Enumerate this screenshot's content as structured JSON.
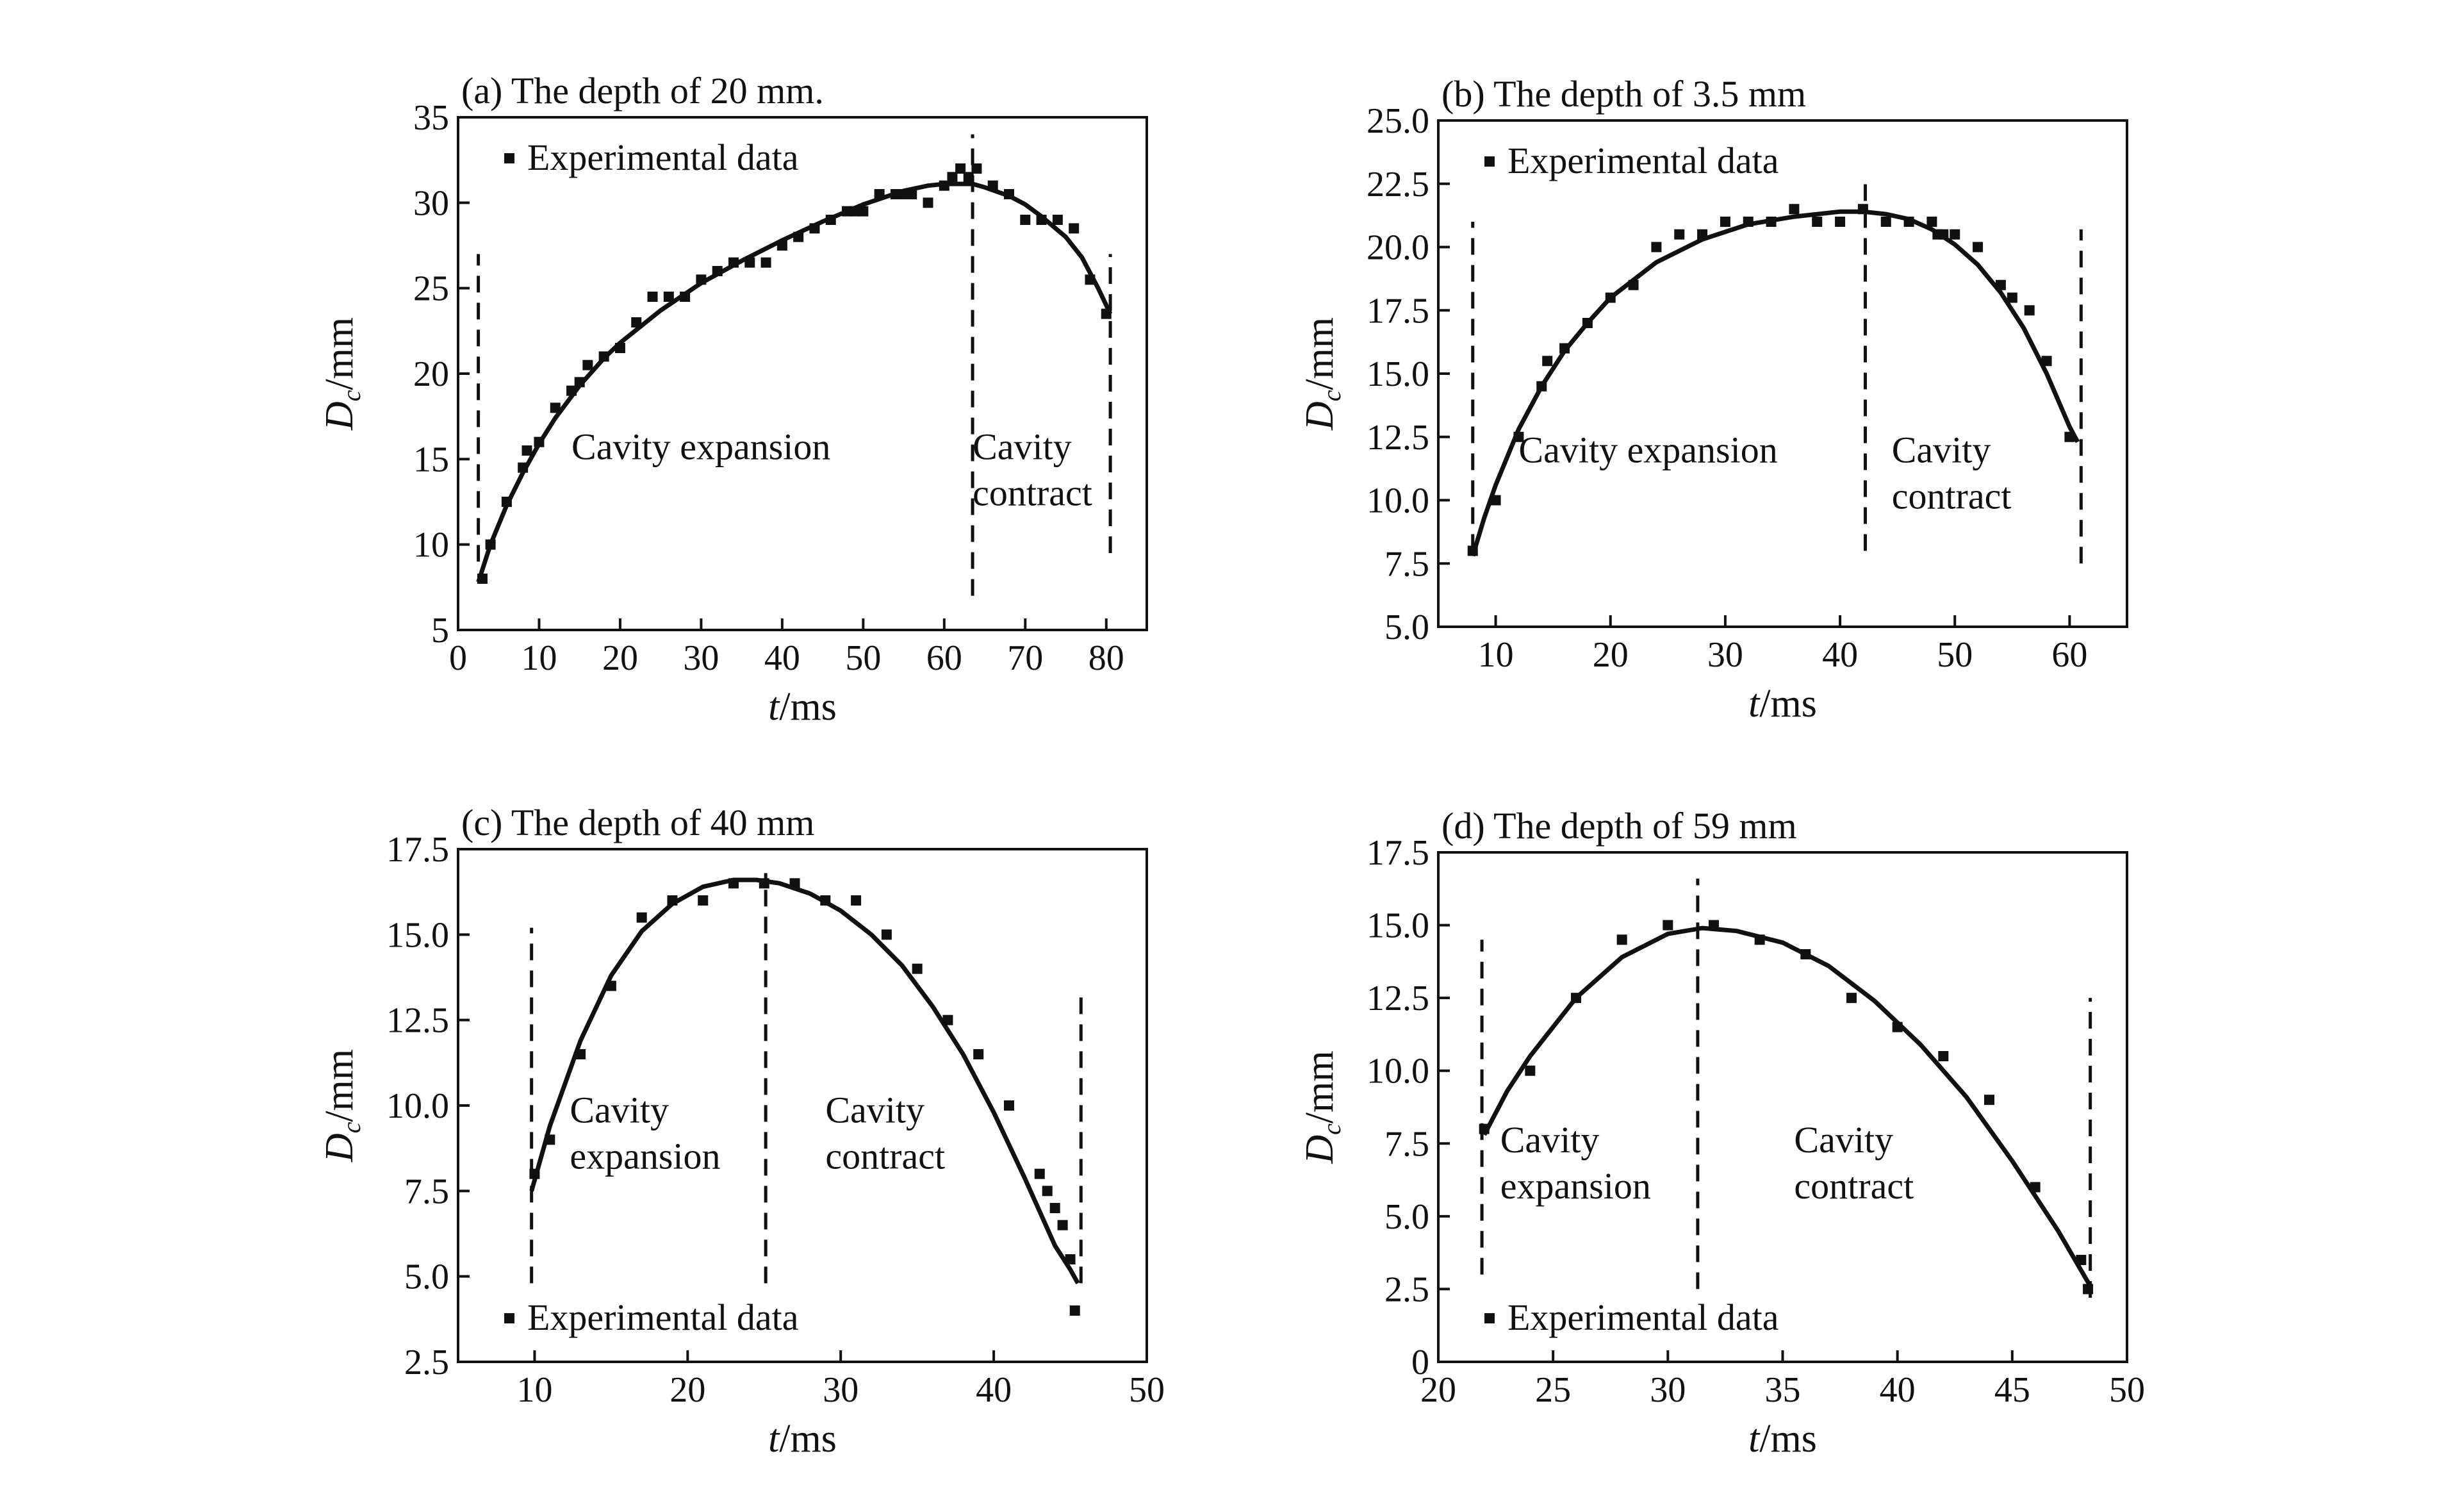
{
  "chart_data": [
    {
      "type": "scatter",
      "title": "(a) The depth of 20 mm.",
      "xlabel_var": "t",
      "xlabel_unit": "/ms",
      "ylabel_var": "D",
      "ylabel_sub": "c",
      "ylabel_unit": "/mm",
      "xlim": [
        0,
        85
      ],
      "ylim": [
        5,
        35
      ],
      "xticks": [
        0,
        10,
        20,
        30,
        40,
        50,
        60,
        70,
        80
      ],
      "yticks": [
        5,
        10,
        15,
        20,
        25,
        30,
        35
      ],
      "xtick_labels": [
        "0",
        "10",
        "20",
        "30",
        "40",
        "50",
        "60",
        "70",
        "80"
      ],
      "ytick_labels": [
        "5",
        "10",
        "15",
        "20",
        "25",
        "30",
        "35"
      ],
      "legend": "Experimental data",
      "legend_position": "top-left",
      "annotations": [
        {
          "text": "Cavity expansion",
          "x": 14,
          "y": 15,
          "line2": ""
        },
        {
          "text": "Cavity",
          "x": 63.5,
          "y": 15,
          "line2": "contract"
        }
      ],
      "dividers": [
        {
          "x": 2.5,
          "y0": 9,
          "y1": 27
        },
        {
          "x": 63.5,
          "y0": 7,
          "y1": 34
        },
        {
          "x": 80.5,
          "y0": 9.5,
          "y1": 27
        }
      ],
      "series": [
        {
          "name": "Experimental data",
          "x": [
            3,
            4,
            6,
            8,
            8.5,
            10,
            12,
            14,
            15,
            16,
            18,
            20,
            22,
            24,
            26,
            28,
            30,
            32,
            34,
            36,
            38,
            40,
            42,
            44,
            46,
            48,
            49,
            50,
            52,
            54,
            55,
            56,
            58,
            60,
            61,
            62,
            63,
            64,
            66,
            68,
            70,
            72,
            74,
            76,
            78,
            80
          ],
          "y": [
            8,
            10,
            12.5,
            14.5,
            15.5,
            16,
            18,
            19,
            19.5,
            20.5,
            21,
            21.5,
            23,
            24.5,
            24.5,
            24.5,
            25.5,
            26,
            26.5,
            26.5,
            26.5,
            27.5,
            28,
            28.5,
            29,
            29.5,
            29.5,
            29.5,
            30.5,
            30.5,
            30.5,
            30.5,
            30,
            31,
            31.5,
            32,
            31.5,
            32,
            31,
            30.5,
            29,
            29,
            29,
            28.5,
            25.5,
            23.5
          ]
        },
        {
          "name": "",
          "style": "fit-line",
          "x": [
            2.5,
            4,
            6,
            8,
            10,
            12,
            15,
            18,
            20,
            25,
            30,
            35,
            40,
            45,
            50,
            55,
            58,
            60,
            62,
            63.5,
            65,
            68,
            70,
            72,
            75,
            77,
            79,
            80.5
          ],
          "y": [
            7.8,
            10,
            12.3,
            14.2,
            15.9,
            17.4,
            19.3,
            20.9,
            21.8,
            23.7,
            25.3,
            26.6,
            27.8,
            28.9,
            29.9,
            30.7,
            31.0,
            31.1,
            31.1,
            31.1,
            30.9,
            30.4,
            29.9,
            29.2,
            28.0,
            26.8,
            25.0,
            23.5
          ]
        }
      ]
    },
    {
      "type": "scatter",
      "title": "(b) The depth of 3.5 mm",
      "xlabel_var": "t",
      "xlabel_unit": "/ms",
      "ylabel_var": "D",
      "ylabel_sub": "c",
      "ylabel_unit": "/mm",
      "xlim": [
        5,
        65
      ],
      "ylim": [
        5,
        25
      ],
      "xticks": [
        10,
        20,
        30,
        40,
        50,
        60
      ],
      "yticks": [
        5,
        7.5,
        10,
        12.5,
        15,
        17.5,
        20,
        22.5,
        25
      ],
      "xtick_labels": [
        "10",
        "20",
        "30",
        "40",
        "50",
        "60"
      ],
      "ytick_labels": [
        "5.0",
        "7.5",
        "10.0",
        "12.5",
        "15.0",
        "17.5",
        "20.0",
        "22.5",
        "25.0"
      ],
      "legend": "Experimental data",
      "legend_position": "top-left",
      "annotations": [
        {
          "text": "Cavity expansion",
          "x": 12,
          "y": 11.5,
          "line2": ""
        },
        {
          "text": "Cavity",
          "x": 44.5,
          "y": 11.5,
          "line2": "contract"
        }
      ],
      "dividers": [
        {
          "x": 8,
          "y0": 8,
          "y1": 21
        },
        {
          "x": 42.2,
          "y0": 8,
          "y1": 22.5
        },
        {
          "x": 61,
          "y0": 7.5,
          "y1": 20.7
        }
      ],
      "series": [
        {
          "name": "Experimental data",
          "x": [
            8,
            10,
            12,
            14,
            14.5,
            16,
            18,
            20,
            22,
            24,
            26,
            28,
            30,
            32,
            34,
            36,
            38,
            40,
            42,
            44,
            46,
            48,
            48.5,
            49,
            50,
            52,
            54,
            55,
            56.5,
            58,
            60
          ],
          "y": [
            8,
            10,
            12.5,
            14.5,
            15.5,
            16,
            17,
            18,
            18.5,
            20,
            20.5,
            20.5,
            21,
            21,
            21,
            21.5,
            21,
            21,
            21.5,
            21,
            21,
            21,
            20.5,
            20.5,
            20.5,
            20,
            18.5,
            18,
            17.5,
            15.5,
            12.5
          ]
        },
        {
          "name": "",
          "style": "fit-line",
          "x": [
            8,
            9,
            10,
            12,
            14,
            16,
            18,
            20,
            24,
            28,
            32,
            36,
            40,
            42,
            44,
            46,
            48,
            50,
            52,
            54,
            56,
            58,
            60,
            60.7
          ],
          "y": [
            7.8,
            9.3,
            10.6,
            12.8,
            14.5,
            15.9,
            17.0,
            18.0,
            19.4,
            20.3,
            20.9,
            21.2,
            21.4,
            21.4,
            21.3,
            21.1,
            20.7,
            20.1,
            19.3,
            18.2,
            16.8,
            15.0,
            12.9,
            12.3
          ]
        }
      ]
    },
    {
      "type": "scatter",
      "title": "(c) The depth of 40 mm",
      "xlabel_var": "t",
      "xlabel_unit": "/ms",
      "ylabel_var": "D",
      "ylabel_sub": "c",
      "ylabel_unit": "/mm",
      "xlim": [
        5,
        50
      ],
      "ylim": [
        2.5,
        17.5
      ],
      "xticks": [
        10,
        20,
        30,
        40,
        50
      ],
      "yticks": [
        2.5,
        5,
        7.5,
        10,
        12.5,
        15,
        17.5
      ],
      "xtick_labels": [
        "10",
        "20",
        "30",
        "40",
        "50"
      ],
      "ytick_labels": [
        "2.5",
        "5.0",
        "7.5",
        "10.0",
        "12.5",
        "15.0",
        "17.5"
      ],
      "legend": "Experimental data",
      "legend_position": "bottom-left",
      "annotations": [
        {
          "text": "Cavity",
          "x": 12.3,
          "y": 9.5,
          "line2": "expansion"
        },
        {
          "text": "Cavity",
          "x": 29,
          "y": 9.5,
          "line2": "contract"
        }
      ],
      "dividers": [
        {
          "x": 9.8,
          "y0": 4.8,
          "y1": 15.2
        },
        {
          "x": 25.1,
          "y0": 4.8,
          "y1": 16.8
        },
        {
          "x": 45.7,
          "y0": 4.8,
          "y1": 13.4
        }
      ],
      "series": [
        {
          "name": "Experimental data",
          "x": [
            10,
            11,
            13,
            15,
            17,
            19,
            21,
            23,
            25,
            27,
            29,
            31,
            33,
            35,
            37,
            39,
            41,
            43,
            43.5,
            44,
            44.5,
            45,
            45.3
          ],
          "y": [
            8,
            9,
            11.5,
            13.5,
            15.5,
            16,
            16,
            16.5,
            16.5,
            16.5,
            16,
            16,
            15,
            14,
            12.5,
            11.5,
            10,
            8,
            7.5,
            7,
            6.5,
            5.5,
            4
          ],
          "label_only": false
        },
        {
          "name": "",
          "style": "fit-line",
          "x": [
            9.8,
            11,
            13,
            15,
            17,
            19,
            21,
            23,
            24.5,
            26,
            28,
            30,
            32,
            34,
            36,
            38,
            40,
            42,
            43,
            44,
            45,
            45.5
          ],
          "y": [
            7.5,
            9.4,
            11.9,
            13.8,
            15.1,
            15.9,
            16.4,
            16.6,
            16.6,
            16.5,
            16.2,
            15.7,
            15.0,
            14.1,
            12.9,
            11.5,
            9.8,
            7.9,
            6.9,
            5.9,
            5.2,
            4.8
          ]
        }
      ]
    },
    {
      "type": "scatter",
      "title": "(d) The depth of 59 mm",
      "xlabel_var": "t",
      "xlabel_unit": "/ms",
      "ylabel_var": "D",
      "ylabel_sub": "c",
      "ylabel_unit": "/mm",
      "xlim": [
        20,
        50
      ],
      "ylim": [
        0,
        17.5
      ],
      "xticks": [
        20,
        25,
        30,
        35,
        40,
        45,
        50
      ],
      "yticks": [
        0,
        2.5,
        5,
        7.5,
        10,
        12.5,
        15,
        17.5
      ],
      "xtick_labels": [
        "20",
        "25",
        "30",
        "35",
        "40",
        "45",
        "50"
      ],
      "ytick_labels": [
        "0",
        "2.5",
        "5.0",
        "7.5",
        "10.0",
        "12.5",
        "15.0",
        "17.5"
      ],
      "legend": "Experimental data",
      "legend_position": "bottom-left",
      "annotations": [
        {
          "text": "Cavity",
          "x": 22.7,
          "y": 7.2,
          "line2": "expansion"
        },
        {
          "text": "Cavity",
          "x": 35.5,
          "y": 7.2,
          "line2": "contract"
        }
      ],
      "dividers": [
        {
          "x": 21.9,
          "y0": 3,
          "y1": 14.5
        },
        {
          "x": 31.3,
          "y0": 2.5,
          "y1": 16.6
        },
        {
          "x": 48.4,
          "y0": 2.2,
          "y1": 12.5
        }
      ],
      "series": [
        {
          "name": "Experimental data",
          "x": [
            22,
            24,
            26,
            28,
            30,
            32,
            34,
            36,
            38,
            40,
            42,
            44,
            46,
            48,
            48.3
          ],
          "y": [
            8,
            10,
            12.5,
            14.5,
            15,
            15,
            14.5,
            14,
            12.5,
            11.5,
            10.5,
            9,
            6,
            3.5,
            2.5
          ]
        },
        {
          "name": "",
          "style": "fit-line",
          "x": [
            22,
            23,
            24,
            26,
            28,
            30,
            31.5,
            33,
            35,
            37,
            39,
            41,
            43,
            45,
            47,
            48.4
          ],
          "y": [
            7.8,
            9.3,
            10.5,
            12.5,
            13.9,
            14.7,
            14.9,
            14.8,
            14.4,
            13.6,
            12.4,
            10.9,
            9.1,
            6.9,
            4.5,
            2.6
          ]
        }
      ]
    }
  ]
}
